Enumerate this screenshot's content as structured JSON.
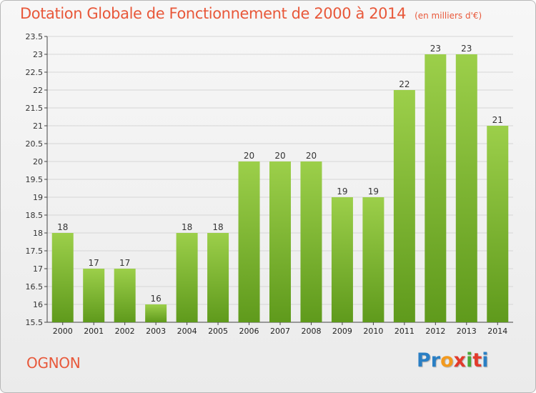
{
  "title": "Dotation Globale de Fonctionnement de 2000 à 2014",
  "unit_note": "(en milliers d'€)",
  "commune": "OGNON",
  "brand": {
    "letters": [
      "Pr",
      "o",
      "x",
      "i",
      "t",
      "i"
    ]
  },
  "colors": {
    "title": "#e8583a",
    "bar_top": "#9ccf4a",
    "bar_bottom": "#5f9a1c",
    "grid": "#d6d6d6"
  },
  "chart_data": {
    "type": "bar",
    "title": "Dotation Globale de Fonctionnement de 2000 à 2014",
    "subtitle": "(en milliers d'€)",
    "xlabel": "",
    "ylabel": "",
    "categories": [
      "2000",
      "2001",
      "2002",
      "2003",
      "2004",
      "2005",
      "2006",
      "2007",
      "2008",
      "2009",
      "2010",
      "2011",
      "2012",
      "2013",
      "2014"
    ],
    "values": [
      18,
      17,
      17,
      16,
      18,
      18,
      20,
      20,
      20,
      19,
      19,
      22,
      23,
      23,
      21
    ],
    "ylim": [
      15.5,
      23.5
    ],
    "yticks": [
      "15.5",
      "16",
      "16.5",
      "17",
      "17.5",
      "18",
      "18.5",
      "19",
      "19.5",
      "20",
      "20.5",
      "21",
      "21.5",
      "22",
      "22.5",
      "23",
      "23.5"
    ],
    "grid": true,
    "legend": "none"
  }
}
